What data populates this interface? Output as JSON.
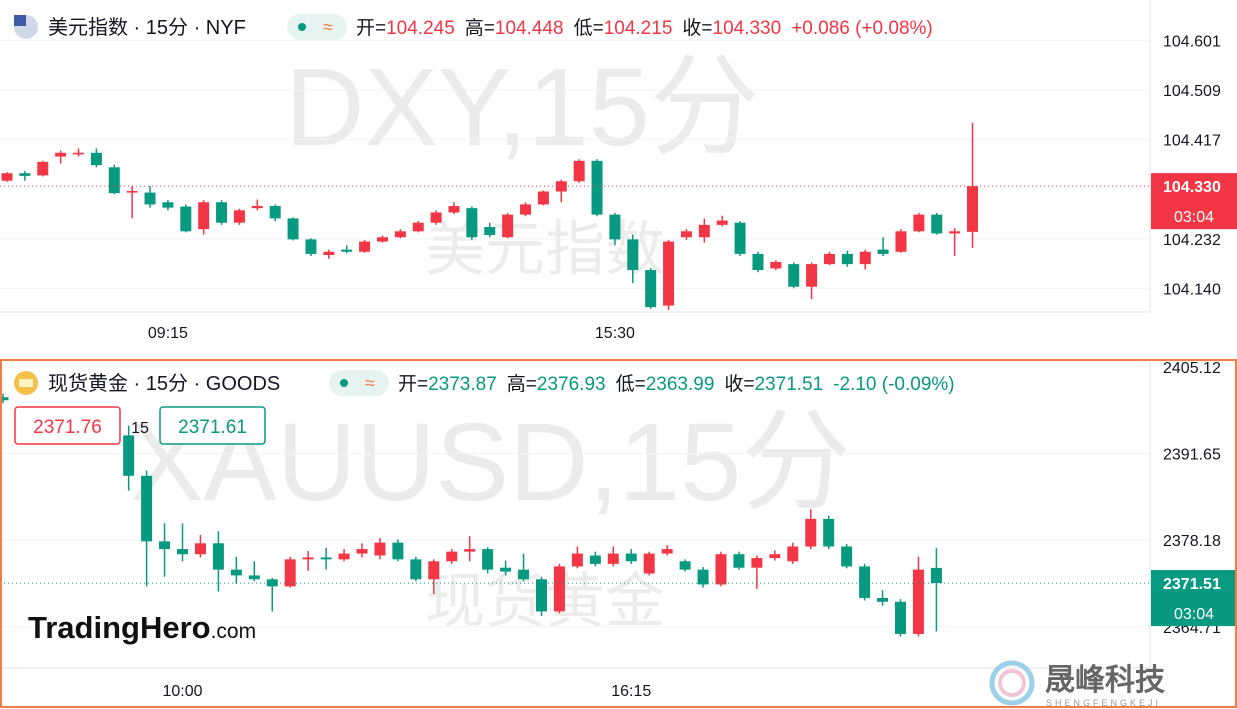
{
  "chart_data": [
    {
      "type": "candlestick",
      "title": "美元指数 · 15分 · NYF",
      "watermark": "DXY,15分",
      "watermark_sub": "美元指数",
      "labels": {
        "open": "开=",
        "high": "高=",
        "low": "低=",
        "close": "收="
      },
      "change": "+0.086 (+0.08%)",
      "close_label": "104.330",
      "countdown": "03:04",
      "categories": [
        null,
        null,
        null,
        null,
        null,
        null,
        null,
        null,
        null,
        "09:15",
        null,
        null,
        null,
        null,
        null,
        null,
        null,
        null,
        null,
        null,
        null,
        null,
        null,
        null,
        null,
        null,
        null,
        null,
        null,
        null,
        null,
        null,
        null,
        null,
        "15:30",
        null,
        null,
        null,
        null,
        null,
        null,
        null,
        null,
        null,
        null,
        null,
        null,
        null,
        null,
        null,
        null,
        null,
        null,
        null,
        null
      ],
      "open": [
        104.34,
        104.354,
        104.35,
        104.385,
        104.389,
        104.392,
        104.365,
        104.318,
        104.318,
        104.3,
        104.292,
        104.25,
        104.3,
        104.262,
        104.289,
        104.293,
        104.27,
        104.231,
        104.202,
        104.212,
        104.208,
        104.227,
        104.235,
        104.246,
        104.262,
        104.281,
        104.289,
        104.254,
        104.235,
        104.277,
        104.296,
        104.32,
        104.339,
        104.377,
        104.277,
        104.231,
        104.174,
        104.108,
        104.235,
        104.235,
        104.258,
        104.262,
        104.204,
        104.177,
        104.185,
        104.143,
        104.185,
        104.204,
        104.185,
        104.212,
        104.208,
        104.246,
        104.277,
        104.242,
        104.245
      ],
      "high": [
        104.356,
        104.358,
        104.377,
        104.396,
        104.4,
        104.4,
        104.37,
        104.33,
        104.33,
        104.304,
        104.296,
        104.304,
        104.304,
        104.288,
        104.305,
        104.296,
        104.272,
        104.233,
        104.212,
        104.22,
        104.23,
        104.238,
        104.25,
        104.265,
        104.285,
        104.3,
        104.292,
        104.262,
        104.28,
        104.3,
        104.322,
        104.342,
        104.38,
        104.38,
        104.28,
        104.24,
        104.178,
        104.23,
        104.25,
        104.27,
        104.275,
        104.265,
        104.208,
        104.192,
        104.188,
        104.188,
        104.208,
        104.21,
        104.212,
        104.235,
        104.25,
        104.28,
        104.28,
        104.252,
        104.448
      ],
      "low": [
        104.338,
        104.34,
        104.348,
        104.372,
        104.385,
        104.365,
        104.315,
        104.27,
        104.29,
        104.285,
        104.244,
        104.24,
        104.258,
        104.258,
        104.285,
        104.265,
        104.229,
        104.2,
        104.195,
        104.205,
        104.206,
        104.225,
        104.233,
        104.244,
        104.258,
        104.278,
        104.23,
        104.235,
        104.233,
        104.274,
        104.294,
        104.3,
        104.336,
        104.274,
        104.22,
        104.15,
        104.102,
        104.1,
        104.23,
        104.225,
        104.255,
        104.2,
        104.17,
        104.174,
        104.14,
        104.12,
        104.183,
        104.18,
        104.175,
        104.2,
        104.206,
        104.244,
        104.24,
        104.2,
        104.215
      ],
      "close": [
        104.354,
        104.349,
        104.375,
        104.392,
        104.392,
        104.369,
        104.317,
        104.321,
        104.296,
        104.29,
        104.246,
        104.3,
        104.262,
        104.285,
        104.293,
        104.27,
        104.231,
        104.204,
        104.208,
        104.208,
        104.227,
        104.235,
        104.246,
        104.262,
        104.281,
        104.293,
        104.235,
        104.239,
        104.277,
        104.296,
        104.32,
        104.339,
        104.377,
        104.277,
        104.231,
        104.174,
        104.105,
        104.227,
        104.246,
        104.258,
        104.266,
        104.204,
        104.174,
        104.189,
        104.143,
        104.185,
        104.204,
        104.185,
        104.208,
        104.204,
        104.246,
        104.277,
        104.242,
        104.246,
        104.33
      ],
      "ylim": [
        104.096,
        104.676
      ],
      "yticks": [
        {
          "value": 104.14,
          "label": "104.140"
        },
        104.232,
        104.417,
        104.509,
        104.601
      ],
      "up_color": "#f23645",
      "down_color": "#089981",
      "grid": true
    },
    {
      "type": "candlestick",
      "title": "现货黄金 · 15分 · GOODS",
      "watermark": "XAUUSD,15分",
      "watermark_sub": "现货黄金",
      "labels": {
        "open": "开=",
        "high": "高=",
        "low": "低=",
        "close": "收="
      },
      "change": "-2.10 (-0.09%)",
      "countdown": "03:04",
      "bid": 2371.76,
      "spread": 15,
      "ask": 2371.61,
      "categories": [
        null,
        null,
        null,
        null,
        null,
        null,
        null,
        null,
        null,
        null,
        "10:00",
        null,
        null,
        null,
        null,
        null,
        null,
        null,
        null,
        null,
        null,
        null,
        null,
        null,
        null,
        null,
        null,
        null,
        null,
        null,
        null,
        null,
        null,
        null,
        null,
        "16:15",
        null,
        null,
        null,
        null,
        null,
        null,
        null,
        null,
        null,
        null,
        null,
        null,
        null,
        null,
        null,
        null,
        null
      ],
      "open": [
        2400.42,
        null,
        null,
        null,
        null,
        null,
        null,
        2394.48,
        2388.2,
        2378.0,
        2376.8,
        2376.0,
        2377.7,
        2373.6,
        2372.7,
        2372.1,
        2371.0,
        2375.2,
        2375.5,
        2375.2,
        2376.1,
        2375.8,
        2377.8,
        2375.2,
        2372.1,
        2374.9,
        2376.4,
        2376.8,
        2373.9,
        2373.6,
        2372.1,
        2367.1,
        2374.1,
        2375.8,
        2374.5,
        2376.1,
        2373.0,
        2376.1,
        2374.9,
        2373.6,
        2371.3,
        2376.0,
        2373.9,
        2375.4,
        2374.9,
        2377.2,
        2381.5,
        2377.2,
        2374.1,
        2369.2,
        2368.6,
        2363.6,
        2373.87
      ],
      "high": [
        2401.0,
        null,
        null,
        null,
        null,
        null,
        null,
        2396.0,
        2389.0,
        2380.8,
        2380.8,
        2379.0,
        2379.6,
        2375.6,
        2374.9,
        2372.3,
        2375.6,
        2376.5,
        2377.0,
        2376.8,
        2377.7,
        2378.5,
        2378.3,
        2375.6,
        2375.2,
        2376.8,
        2378.8,
        2377.1,
        2375.0,
        2376.1,
        2372.5,
        2374.5,
        2377.2,
        2376.4,
        2377.2,
        2376.8,
        2376.4,
        2377.4,
        2375.2,
        2374.0,
        2376.4,
        2376.4,
        2375.8,
        2376.6,
        2377.8,
        2383.0,
        2382.0,
        2377.6,
        2374.5,
        2370.4,
        2369.0,
        2375.6,
        2376.93
      ],
      "low": [
        2399.5,
        null,
        null,
        null,
        null,
        null,
        null,
        2385.9,
        2371.0,
        2372.5,
        2374.9,
        2375.5,
        2370.2,
        2371.4,
        2371.8,
        2367.1,
        2370.8,
        2373.4,
        2373.6,
        2374.9,
        2375.5,
        2375.2,
        2374.9,
        2371.8,
        2369.8,
        2374.5,
        2374.9,
        2373.0,
        2372.7,
        2371.8,
        2366.4,
        2366.8,
        2373.8,
        2374.1,
        2374.1,
        2374.5,
        2372.7,
        2375.8,
        2373.3,
        2370.8,
        2371.0,
        2373.6,
        2370.6,
        2375.0,
        2374.5,
        2376.8,
        2376.8,
        2373.8,
        2368.8,
        2368.0,
        2363.2,
        2363.2,
        2363.99
      ],
      "close": [
        2399.95,
        null,
        null,
        null,
        null,
        null,
        null,
        2388.2,
        2378.0,
        2376.8,
        2376.0,
        2377.7,
        2373.6,
        2372.7,
        2372.1,
        2371.0,
        2375.2,
        2375.5,
        2375.2,
        2376.1,
        2376.8,
        2377.8,
        2375.2,
        2372.1,
        2374.9,
        2376.4,
        2376.8,
        2373.6,
        2373.3,
        2372.1,
        2367.1,
        2374.1,
        2376.1,
        2374.5,
        2376.1,
        2374.9,
        2376.1,
        2376.8,
        2373.6,
        2371.3,
        2376.0,
        2373.9,
        2375.4,
        2376.0,
        2377.2,
        2381.5,
        2377.2,
        2374.1,
        2369.2,
        2368.6,
        2363.6,
        2373.6,
        2371.51
      ],
      "ylim": [
        2358.3,
        2405.9
      ],
      "yticks": [
        2364.71,
        2378.18,
        2391.65,
        2405.12
      ],
      "up_color": "#f23645",
      "down_color": "#089981",
      "grid": true
    }
  ],
  "branding": {
    "left": "TradingHero",
    "left_suffix": ".com",
    "right": "晟峰科技",
    "right_sub": "SHENGFENGKEJI"
  }
}
